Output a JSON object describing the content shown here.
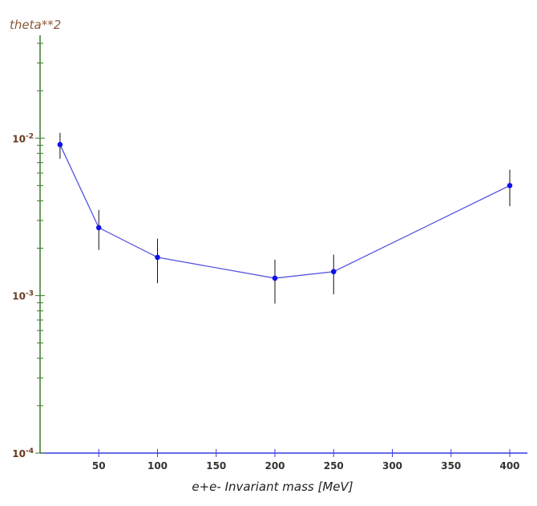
{
  "chart_data": {
    "type": "line",
    "title": "",
    "ylabel": "theta**2",
    "xlabel": "e+e- Invariant mass    [MeV]",
    "yscale": "log",
    "xlim": [
      0,
      415
    ],
    "ylim": [
      0.0001,
      0.045
    ],
    "x_ticks": [
      50,
      100,
      150,
      200,
      250,
      300,
      350,
      400
    ],
    "y_ticks": [
      {
        "value": 0.01,
        "base": "10",
        "exp": "-2"
      },
      {
        "value": 0.001,
        "base": "10",
        "exp": "-3"
      },
      {
        "value": 0.0001,
        "base": "10",
        "exp": "-4"
      }
    ],
    "series": [
      {
        "x": [
          17,
          50,
          100,
          200,
          250,
          400
        ],
        "y": [
          0.0091,
          0.0027,
          0.00175,
          0.00129,
          0.00142,
          0.005
        ],
        "y_err_low": [
          0.0017,
          0.00075,
          0.00055,
          0.0004,
          0.0004,
          0.0013
        ],
        "y_err_high": [
          0.0017,
          0.0008,
          0.00055,
          0.0004,
          0.0004,
          0.0013
        ]
      }
    ],
    "grid": false,
    "colors": {
      "line": "#5555e0",
      "marker": "#1010e8",
      "errorbar": "#111111",
      "yaxis": "#3a7a2a",
      "xaxis": "#3a3ae0"
    }
  }
}
